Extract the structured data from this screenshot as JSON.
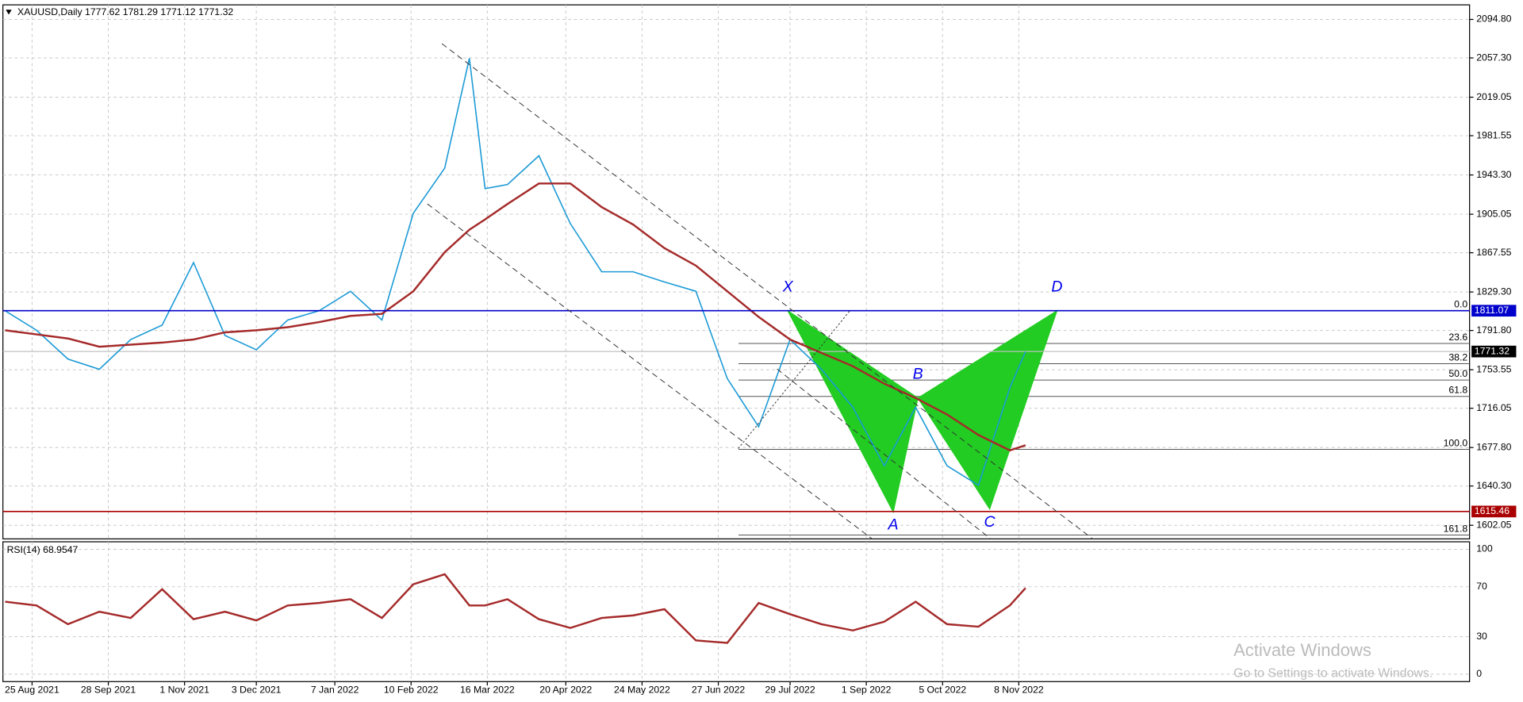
{
  "chart_data": {
    "type": "line",
    "header": {
      "symbol": "XAUUSD,Daily",
      "ohlc": [
        1777.62,
        1781.29,
        1771.12,
        1771.32
      ]
    },
    "x": [
      "2021-08-13",
      "2021-08-27",
      "2021-09-10",
      "2021-09-24",
      "2021-10-08",
      "2021-10-22",
      "2021-11-05",
      "2021-11-19",
      "2021-12-03",
      "2021-12-17",
      "2021-12-31",
      "2022-01-14",
      "2022-01-28",
      "2022-02-11",
      "2022-02-25",
      "2022-03-08",
      "2022-03-15",
      "2022-03-25",
      "2022-04-08",
      "2022-04-22",
      "2022-05-06",
      "2022-05-20",
      "2022-06-03",
      "2022-06-17",
      "2022-07-01",
      "2022-07-15",
      "2022-07-29",
      "2022-08-12",
      "2022-08-26",
      "2022-09-09",
      "2022-09-23",
      "2022-10-07",
      "2022-10-21",
      "2022-11-04",
      "2022-11-11"
    ],
    "series": [
      {
        "name": "close",
        "color": "#1c9ad6",
        "values": [
          1811,
          1792,
          1764,
          1754,
          1783,
          1797,
          1858,
          1787,
          1773,
          1802,
          1811,
          1830,
          1802,
          1906,
          1950,
          2057,
          1930,
          1934,
          1962,
          1896,
          1849,
          1849,
          1839,
          1830,
          1745,
          1698,
          1783,
          1754,
          1717,
          1660,
          1717,
          1660,
          1641,
          1736,
          1771.32
        ]
      },
      {
        "name": "ma",
        "color": "#a52a2a",
        "values": [
          1792,
          1788,
          1784,
          1776,
          1778,
          1780,
          1783,
          1790,
          1792,
          1795,
          1800,
          1806,
          1808,
          1830,
          1868,
          1890,
          1900,
          1915,
          1935,
          1935,
          1912,
          1895,
          1872,
          1855,
          1830,
          1805,
          1783,
          1770,
          1757,
          1740,
          1726,
          1710,
          1690,
          1675,
          1680
        ]
      }
    ],
    "xlim": [
      "2021-08-12",
      "2023-05-28"
    ],
    "xticks": [
      {
        "value": "2021-08-25",
        "label": "25 Aug 2021"
      },
      {
        "value": "2021-09-28",
        "label": "28 Sep 2021"
      },
      {
        "value": "2021-11-01",
        "label": "1 Nov 2021"
      },
      {
        "value": "2021-12-03",
        "label": "3 Dec 2021"
      },
      {
        "value": "2022-01-07",
        "label": "7 Jan 2022"
      },
      {
        "value": "2022-02-10",
        "label": "10 Feb 2022"
      },
      {
        "value": "2022-03-16",
        "label": "16 Mar 2022"
      },
      {
        "value": "2022-04-20",
        "label": "20 Apr 2022"
      },
      {
        "value": "2022-05-24",
        "label": "24 May 2022"
      },
      {
        "value": "2022-06-27",
        "label": "27 Jun 2022"
      },
      {
        "value": "2022-07-29",
        "label": "29 Jul 2022"
      },
      {
        "value": "2022-09-01",
        "label": "1 Sep 2022"
      },
      {
        "value": "2022-10-05",
        "label": "5 Oct 2022"
      },
      {
        "value": "2022-11-08",
        "label": "8 Nov 2022"
      }
    ],
    "ylim": [
      1588.8,
      2109.0
    ],
    "yticks": [
      {
        "value": 2094.8,
        "label": "2094.80"
      },
      {
        "value": 2057.3,
        "label": "2057.30"
      },
      {
        "value": 2019.05,
        "label": "2019.05"
      },
      {
        "value": 1981.55,
        "label": "1981.55"
      },
      {
        "value": 1943.3,
        "label": "1943.30"
      },
      {
        "value": 1905.05,
        "label": "1905.05"
      },
      {
        "value": 1867.55,
        "label": "1867.55"
      },
      {
        "value": 1829.3,
        "label": "1829.30"
      },
      {
        "value": 1791.8,
        "label": "1791.80"
      },
      {
        "value": 1753.55,
        "label": "1753.55"
      },
      {
        "value": 1716.05,
        "label": "1716.05"
      },
      {
        "value": 1677.8,
        "label": "1677.80"
      },
      {
        "value": 1640.3,
        "label": "1640.30"
      },
      {
        "value": 1602.05,
        "label": "1602.05"
      }
    ],
    "grid": true,
    "hlines": [
      {
        "value": 1811.07,
        "color": "#0000cc"
      },
      {
        "value": 1615.46,
        "color": "#aa0000"
      }
    ],
    "fibonacci": {
      "start": "2022-07-06",
      "range": [
        1676,
        1811.07
      ],
      "levels": [
        {
          "value": 0,
          "label": "0.0"
        },
        23.6,
        38.2,
        {
          "value": 50,
          "label": "50.0"
        },
        61.8,
        {
          "value": 100,
          "label": "100.0"
        },
        161.8
      ]
    },
    "pattern": {
      "color": "#22cc22",
      "points": [
        {
          "label": "X",
          "x": "2022-07-28",
          "value": 1811
        },
        {
          "label": "A",
          "x": "2022-09-13",
          "value": 1615
        },
        {
          "label": "B",
          "x": "2022-09-24",
          "value": 1726
        },
        {
          "label": "C",
          "x": "2022-10-26",
          "value": 1618
        },
        {
          "label": "D",
          "x": "2022-11-25",
          "value": 1811
        }
      ]
    },
    "rsi": {
      "name": "RSI(14)",
      "color": "#a52a2a",
      "ylim": [
        -6,
        106
      ],
      "yticks": [
        100,
        70,
        30,
        0
      ],
      "values": [
        58,
        55,
        40,
        50,
        45,
        68,
        44,
        50,
        43,
        55,
        57,
        60,
        45,
        72,
        80,
        55,
        55,
        60,
        44,
        37,
        45,
        47,
        52,
        27,
        25,
        57,
        48,
        40,
        35,
        42,
        58,
        40,
        38,
        55,
        68.9547
      ]
    },
    "watermark": [
      "Activate Windows",
      "Go to Settings to activate Windows."
    ]
  }
}
